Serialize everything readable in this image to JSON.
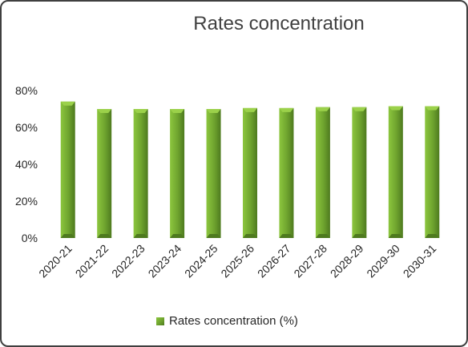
{
  "chart_data": {
    "type": "bar",
    "title": "Rates concentration",
    "categories": [
      "2020-21",
      "2021-22",
      "2022-23",
      "2023-24",
      "2024-25",
      "2025-26",
      "2026-27",
      "2027-28",
      "2028-29",
      "2029-30",
      "2030-31"
    ],
    "series": [
      {
        "name": "Rates concentration (%)",
        "values": [
          74,
          70,
          70,
          70,
          70,
          70.5,
          70.5,
          71,
          71,
          71.5,
          71.5
        ]
      }
    ],
    "yticks": [
      "0%",
      "20%",
      "40%",
      "60%",
      "80%"
    ],
    "ylim": [
      0,
      80
    ],
    "grid": false,
    "legend_position": "bottom",
    "colors": {
      "bar_light": "#8cc63e",
      "bar_mid": "#6ea32e",
      "bar_dark": "#4e7a1f",
      "bar_top": "#9bd14a"
    }
  }
}
